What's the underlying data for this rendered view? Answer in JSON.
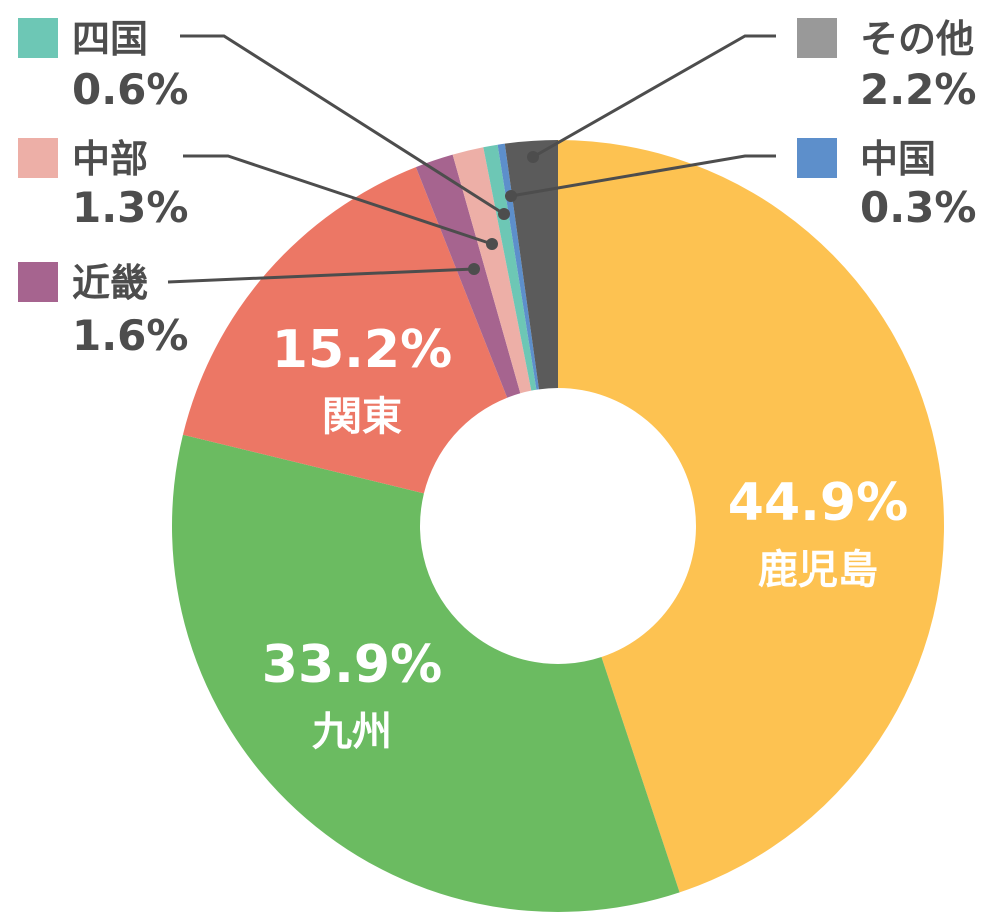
{
  "chart_data": {
    "type": "pie",
    "donut": true,
    "title": "",
    "slices": [
      {
        "label": "鹿児島",
        "value": 44.9,
        "display": "44.9%",
        "color": "#FDC251"
      },
      {
        "label": "九州",
        "value": 33.9,
        "display": "33.9%",
        "color": "#6BBB61"
      },
      {
        "label": "関東",
        "value": 15.2,
        "display": "15.2%",
        "color": "#EC7765"
      },
      {
        "label": "近畿",
        "value": 1.6,
        "display": "1.6%",
        "color": "#A6648F"
      },
      {
        "label": "中部",
        "value": 1.3,
        "display": "1.3%",
        "color": "#EDAFA7"
      },
      {
        "label": "四国",
        "value": 0.6,
        "display": "0.6%",
        "color": "#6DC7B5"
      },
      {
        "label": "中国",
        "value": 0.3,
        "display": "0.3%",
        "color": "#5D8FCB"
      },
      {
        "label": "その他",
        "value": 2.2,
        "display": "2.2%",
        "color": "#5B5B5B"
      }
    ],
    "legend_swatch_colors": {
      "その他": "#999999"
    }
  }
}
